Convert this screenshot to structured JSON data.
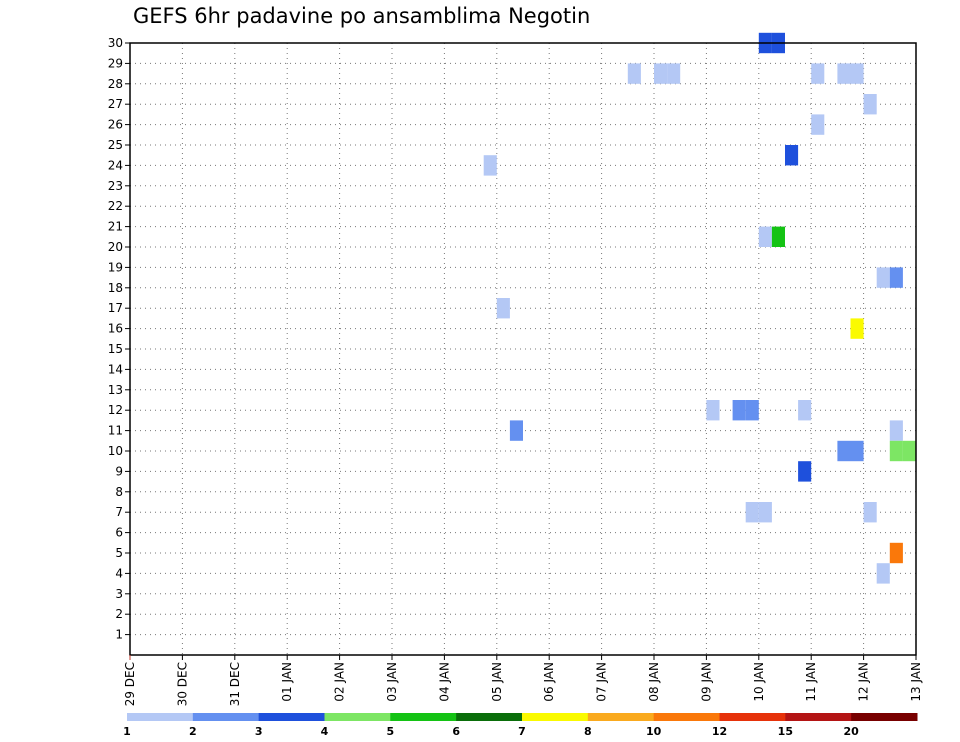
{
  "chart_data": {
    "type": "heatmap",
    "title": "GEFS 6hr padavine po ansamblima Negotin",
    "x_ticks": [
      "29 DEC",
      "30 DEC",
      "31 DEC",
      "01 JAN",
      "02 JAN",
      "03 JAN",
      "04 JAN",
      "05 JAN",
      "06 JAN",
      "07 JAN",
      "08 JAN",
      "09 JAN",
      "10 JAN",
      "11 JAN",
      "12 JAN",
      "13 JAN"
    ],
    "y_ticks": [
      1,
      2,
      3,
      4,
      5,
      6,
      7,
      8,
      9,
      10,
      11,
      12,
      13,
      14,
      15,
      16,
      17,
      18,
      19,
      20,
      21,
      22,
      23,
      24,
      25,
      26,
      27,
      28,
      29,
      30
    ],
    "x_unit": "days since 29 DEC",
    "xlim": [
      0,
      15
    ],
    "ylim": [
      0,
      30
    ],
    "grid": true,
    "legend_labels": [
      "1",
      "2",
      "3",
      "4",
      "5",
      "6",
      "7",
      "8",
      "10",
      "12",
      "15",
      "20"
    ],
    "legend_colors": [
      "#b4c8f5",
      "#6490f0",
      "#1e50dc",
      "#7de664",
      "#14c314",
      "#0a6e0a",
      "#fafa00",
      "#faaa1e",
      "#fa780a",
      "#e6320a",
      "#b41414",
      "#780000"
    ],
    "cells": [
      {
        "day": 7.0,
        "member": 24,
        "value": 1.5
      },
      {
        "day": 7.25,
        "member": 17,
        "value": 1.5
      },
      {
        "day": 7.5,
        "member": 11,
        "value": 2.5
      },
      {
        "day": 9.75,
        "member": 28.5,
        "value": 1.5
      },
      {
        "day": 10.25,
        "member": 28.5,
        "value": 1.5
      },
      {
        "day": 10.5,
        "member": 28.5,
        "value": 1.5
      },
      {
        "day": 11.25,
        "member": 12,
        "value": 1.5
      },
      {
        "day": 11.75,
        "member": 12,
        "value": 2.5
      },
      {
        "day": 12.0,
        "member": 12,
        "value": 2.5
      },
      {
        "day": 12.0,
        "member": 7,
        "value": 1.5
      },
      {
        "day": 12.25,
        "member": 7,
        "value": 1.5
      },
      {
        "day": 12.25,
        "member": 30,
        "value": 3.5
      },
      {
        "day": 12.5,
        "member": 30,
        "value": 3.5
      },
      {
        "day": 12.25,
        "member": 20.5,
        "value": 1.5
      },
      {
        "day": 12.5,
        "member": 20.5,
        "value": 5.5
      },
      {
        "day": 12.75,
        "member": 24.5,
        "value": 3.5
      },
      {
        "day": 13.0,
        "member": 9,
        "value": 3.5
      },
      {
        "day": 13.0,
        "member": 12,
        "value": 1.5
      },
      {
        "day": 13.25,
        "member": 28.5,
        "value": 1.5
      },
      {
        "day": 13.25,
        "member": 26,
        "value": 1.5
      },
      {
        "day": 13.75,
        "member": 28.5,
        "value": 1.5
      },
      {
        "day": 13.75,
        "member": 10,
        "value": 2.5
      },
      {
        "day": 14.0,
        "member": 28.5,
        "value": 1.5
      },
      {
        "day": 14.0,
        "member": 10,
        "value": 2.5
      },
      {
        "day": 14.0,
        "member": 16,
        "value": 7.5
      },
      {
        "day": 14.25,
        "member": 27,
        "value": 1.5
      },
      {
        "day": 14.25,
        "member": 7,
        "value": 1.5
      },
      {
        "day": 14.5,
        "member": 4,
        "value": 1.5
      },
      {
        "day": 14.5,
        "member": 18.5,
        "value": 1.5
      },
      {
        "day": 14.75,
        "member": 18.5,
        "value": 2.5
      },
      {
        "day": 14.75,
        "member": 11,
        "value": 1.5
      },
      {
        "day": 14.75,
        "member": 10,
        "value": 4.5
      },
      {
        "day": 15.0,
        "member": 10,
        "value": 4.5
      },
      {
        "day": 14.75,
        "member": 5,
        "value": 11
      }
    ]
  }
}
